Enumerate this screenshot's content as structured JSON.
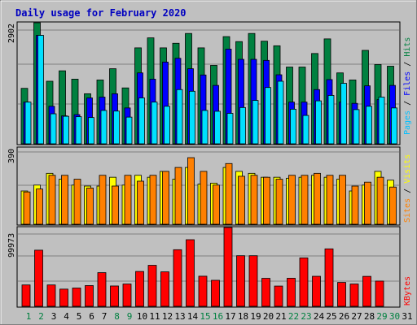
{
  "chart_data": {
    "type": "bar",
    "title": "Daily usage for February 2020",
    "categories": [
      "1",
      "2",
      "3",
      "4",
      "5",
      "6",
      "7",
      "8",
      "9",
      "10",
      "11",
      "12",
      "13",
      "14",
      "15",
      "16",
      "17",
      "18",
      "19",
      "20",
      "21",
      "22",
      "23",
      "24",
      "25",
      "26",
      "27",
      "28",
      "29",
      "30",
      "31"
    ],
    "weekend_days": [
      "1",
      "2",
      "8",
      "9",
      "15",
      "16",
      "22",
      "23",
      "29",
      "30"
    ],
    "panels": [
      {
        "id": "top",
        "max_label": "2902",
        "ylim": [
          0,
          2902
        ],
        "grid": true,
        "legend": [
          "Pages",
          "Files",
          "Hits"
        ],
        "series": [
          {
            "name": "Hits",
            "color": "#008040",
            "values": [
              1330,
              2902,
              1500,
              1750,
              1550,
              1200,
              1530,
              1800,
              1340,
              2300,
              2540,
              2300,
              2410,
              2645,
              2300,
              1880,
              2570,
              2450,
              2645,
              2460,
              2350,
              1840,
              1840,
              2165,
              2515,
              1700,
              1530,
              2240,
              1900,
              1860,
              null
            ]
          },
          {
            "name": "Files",
            "color": "#0000ff",
            "values": [
              1000,
              2600,
              900,
              670,
              700,
              1100,
              1120,
              1200,
              860,
              1700,
              1550,
              1960,
              2050,
              1800,
              1650,
              1400,
              2270,
              2025,
              2025,
              2000,
              1655,
              1000,
              1000,
              1300,
              1540,
              1000,
              970,
              1390,
              1060,
              1400,
              null
            ]
          },
          {
            "name": "Pages",
            "color": "#00e0ff",
            "values": [
              1000,
              2600,
              720,
              660,
              650,
              630,
              800,
              785,
              640,
              1100,
              1000,
              900,
              1300,
              1260,
              800,
              780,
              730,
              870,
              1040,
              1350,
              1500,
              830,
              680,
              1030,
              1160,
              1450,
              820,
              900,
              1120,
              860,
              null
            ]
          }
        ]
      },
      {
        "id": "middle",
        "max_label": "390",
        "ylim": [
          0,
          390
        ],
        "grid": true,
        "legend": [
          "Sites",
          "Visits"
        ],
        "series": [
          {
            "name": "Visits",
            "color": "#ffff00",
            "values": [
              170,
              200,
              260,
              230,
              200,
              195,
              195,
              240,
              200,
              250,
              240,
              270,
              230,
              290,
              205,
              210,
              290,
              270,
              260,
              240,
              240,
              235,
              240,
              250,
              240,
              230,
              170,
              200,
              270,
              225,
              null
            ]
          },
          {
            "name": "Sites",
            "color": "#ff8000",
            "values": [
              165,
              180,
              250,
              250,
              230,
              185,
              250,
              195,
              250,
              220,
              250,
              270,
              290,
              340,
              270,
              200,
              310,
              245,
              250,
              240,
              230,
              250,
              250,
              260,
              250,
              250,
              195,
              215,
              240,
              190,
              null
            ]
          }
        ]
      },
      {
        "id": "bottom",
        "max_label": "99973",
        "ylim": [
          0,
          99973
        ],
        "grid": true,
        "legend": [
          "KBytes"
        ],
        "series": [
          {
            "name": "KBytes",
            "color": "#ff0000",
            "values": [
              27100,
              71200,
              27100,
              21800,
              23200,
              26300,
              42700,
              25800,
              28300,
              44200,
              52000,
              43700,
              71800,
              84500,
              38200,
              33000,
              99973,
              64200,
              64200,
              35500,
              25700,
              35600,
              61400,
              38100,
              72900,
              30300,
              28300,
              38000,
              32000,
              null,
              null
            ]
          }
        ]
      }
    ]
  }
}
